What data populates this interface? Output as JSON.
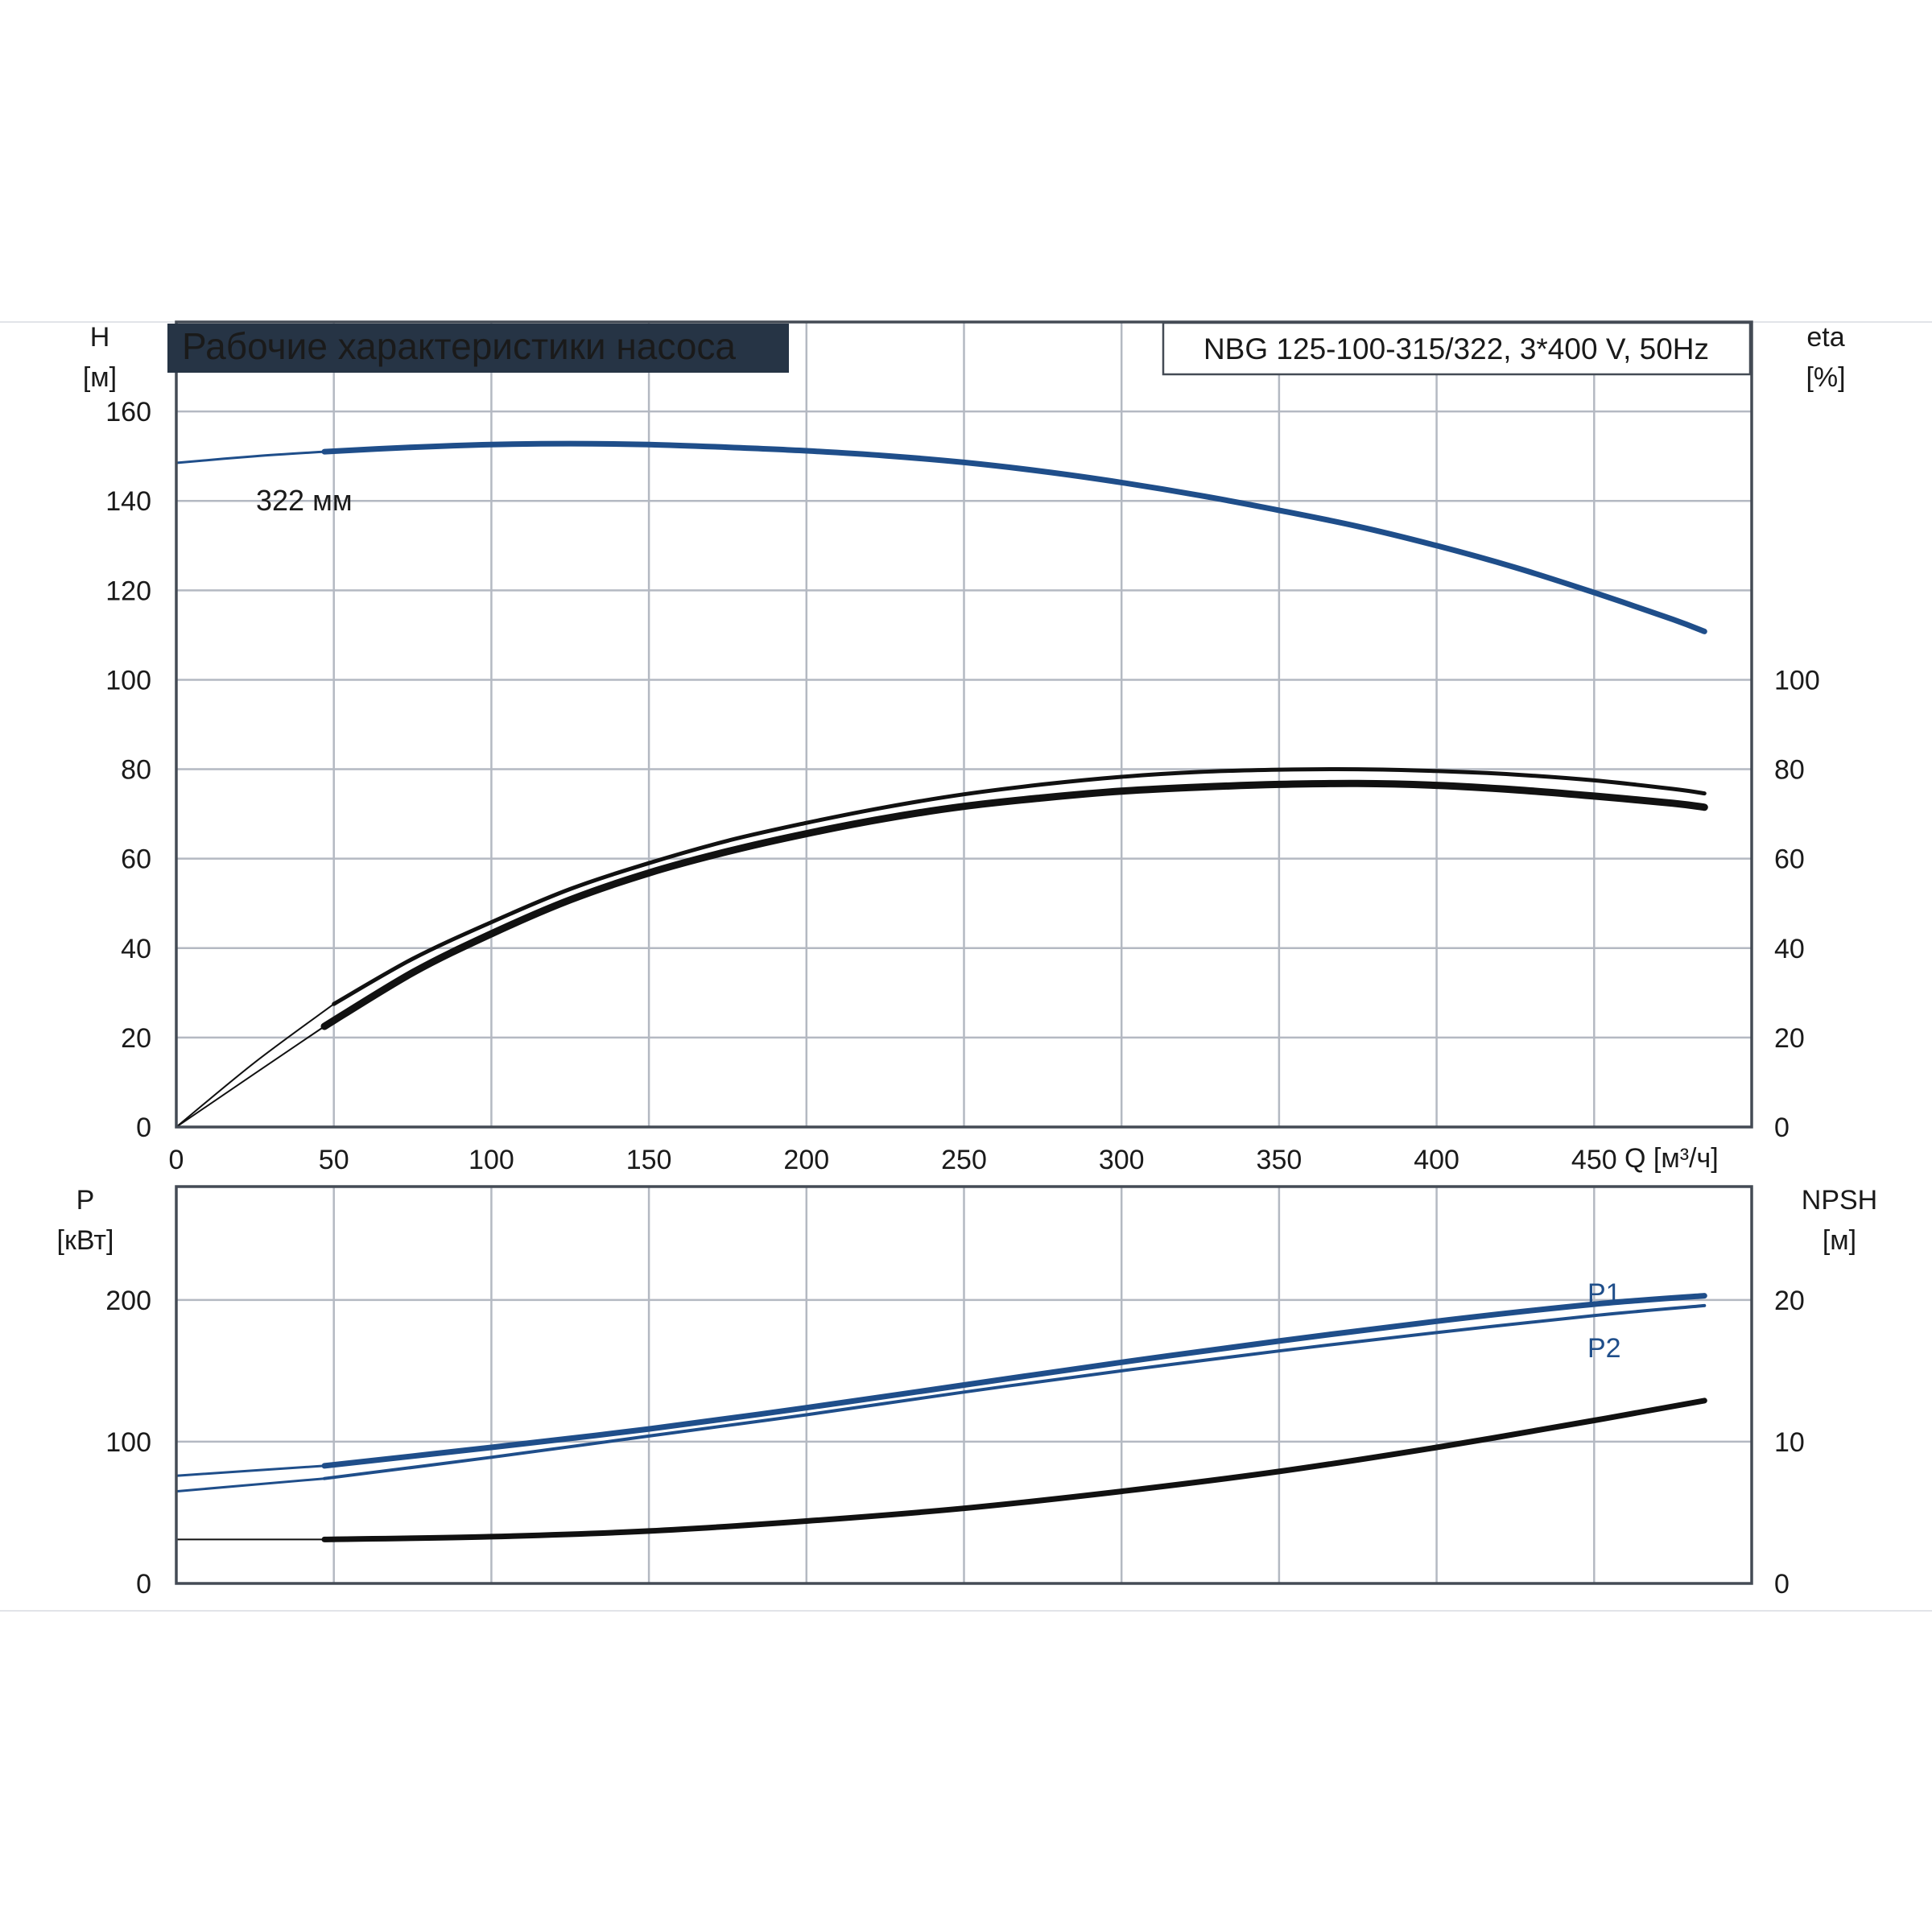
{
  "colors": {
    "title_bg": "#263445",
    "blue": "#1f4e8a",
    "black": "#111111",
    "grid": "#b4b9c2"
  },
  "chart_data": [
    {
      "type": "line",
      "panel": "top",
      "title": "Рабочие характеристики насоса",
      "model": "NBG 125-100-315/322, 3*400 V, 50Hz",
      "xlabel": "Q [м³/ч]",
      "x_ticks": [
        "0",
        "50",
        "100",
        "150",
        "200",
        "250",
        "300",
        "350",
        "400",
        "450"
      ],
      "xlim": [
        0,
        500
      ],
      "ylabel_left": [
        "H",
        "[м]"
      ],
      "ylabel_right": [
        "eta",
        "[%]"
      ],
      "ylim": [
        0,
        180
      ],
      "y_ticks_left": [
        "0",
        "20",
        "40",
        "60",
        "80",
        "100",
        "120",
        "140",
        "160"
      ],
      "y_ticks_right": [
        "0",
        "20",
        "40",
        "60",
        "80",
        "100"
      ],
      "grid": true,
      "annotation": "322 мм",
      "series": [
        {
          "id": "head",
          "color": "#1f4e8a",
          "x": [
            0,
            25,
            47,
            75,
            100,
            125,
            150,
            175,
            200,
            225,
            250,
            275,
            300,
            325,
            350,
            375,
            400,
            425,
            450,
            475,
            485
          ],
          "y": [
            148.5,
            150,
            151,
            152,
            152.6,
            152.8,
            152.6,
            152,
            151.2,
            150.1,
            148.6,
            146.6,
            144.1,
            141.2,
            137.9,
            134.3,
            130.0,
            125.1,
            119.5,
            113.5,
            110.8
          ]
        },
        {
          "id": "eta-1",
          "color": "#111111",
          "x": [
            0,
            25,
            50,
            75,
            100,
            125,
            150,
            175,
            200,
            225,
            250,
            275,
            300,
            325,
            350,
            375,
            400,
            425,
            450,
            475,
            485
          ],
          "y": [
            0,
            14.5,
            27.5,
            37.6,
            45.8,
            53.2,
            59.0,
            64.0,
            68.0,
            71.5,
            74.4,
            76.6,
            78.3,
            79.4,
            79.9,
            80.0,
            79.6,
            78.8,
            77.5,
            75.6,
            74.6
          ]
        },
        {
          "id": "eta-2",
          "color": "#111111",
          "x": [
            0,
            25,
            47,
            75,
            100,
            125,
            150,
            175,
            200,
            225,
            250,
            275,
            300,
            325,
            350,
            375,
            400,
            425,
            450,
            475,
            485
          ],
          "y": [
            0,
            12,
            22.5,
            34.5,
            43.2,
            50.8,
            56.8,
            61.6,
            65.6,
            69.0,
            71.7,
            73.6,
            75.1,
            76.0,
            76.6,
            76.8,
            76.4,
            75.4,
            74.0,
            72.4,
            71.5
          ]
        }
      ]
    },
    {
      "type": "line",
      "panel": "bottom",
      "ylabel_left": [
        "P",
        "[кВт]"
      ],
      "ylabel_right": [
        "NPSH",
        "[м]"
      ],
      "xlim": [
        0,
        500
      ],
      "ylim": [
        0,
        280
      ],
      "y_ticks_left": [
        "0",
        "100",
        "200"
      ],
      "y_ticks_right": [
        "0",
        "10",
        "20"
      ],
      "grid": true,
      "series": [
        {
          "id": "P1",
          "name": "P1",
          "color": "#1f4e8a",
          "x": [
            0,
            47,
            100,
            150,
            200,
            250,
            300,
            350,
            400,
            450,
            485
          ],
          "y": [
            76,
            83,
            96,
            109,
            124,
            140,
            156,
            171,
            185,
            197,
            203
          ]
        },
        {
          "id": "P2",
          "name": "P2",
          "color": "#1f4e8a",
          "x": [
            0,
            47,
            100,
            150,
            200,
            250,
            300,
            350,
            400,
            450,
            485
          ],
          "y": [
            65,
            74,
            89,
            104,
            119,
            135,
            150,
            164,
            177,
            189,
            196
          ]
        },
        {
          "id": "npsh",
          "color": "#111111",
          "x": [
            0,
            47,
            100,
            150,
            200,
            250,
            300,
            350,
            400,
            450,
            485
          ],
          "y": [
            31,
            31,
            33,
            37,
            44,
            53,
            65,
            79,
            96,
            115,
            129
          ]
        }
      ]
    }
  ]
}
